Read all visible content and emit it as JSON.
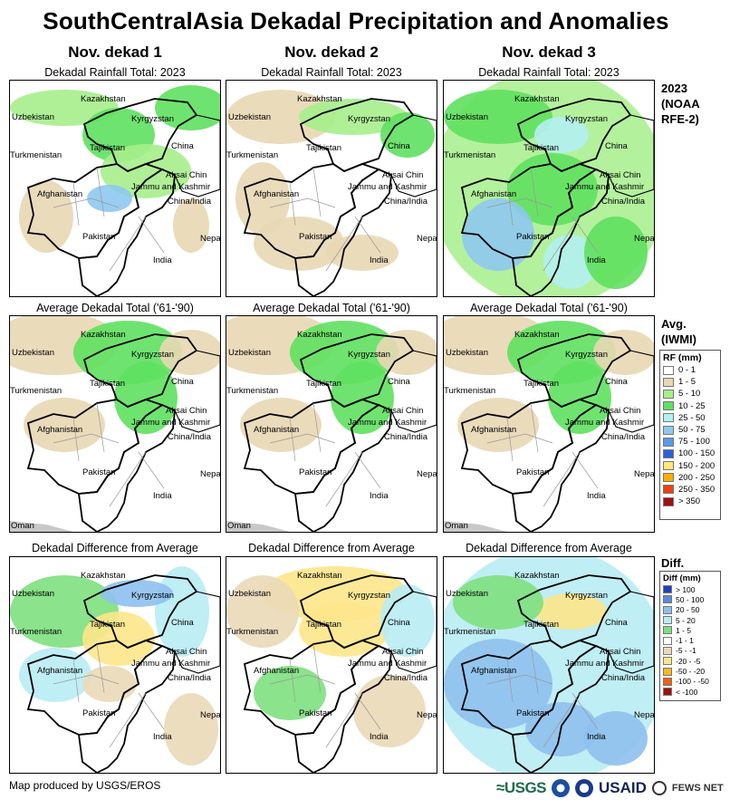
{
  "title": "SouthCentralAsia Dekadal Precipitation and Anomalies",
  "columns": [
    "Nov. dekad 1",
    "Nov. dekad 2",
    "Nov. dekad 3"
  ],
  "row_captions": {
    "total": "Dekadal Rainfall Total: 2023",
    "average": "Average Dekadal Total ('61-'90)",
    "difference": "Dekadal Difference from Average"
  },
  "side": {
    "total_title": [
      "2023",
      "(NOAA",
      "RFE-2)"
    ],
    "average_title": [
      "Avg.",
      "(IWMI)"
    ],
    "difference_title": "Diff."
  },
  "labels": {
    "kazakhstan": "Kazakhstan",
    "uzbekistan": "Uzbekistan",
    "kyrgyzstan": "Kyrgyzstan",
    "turkmenistan": "Turkmenistan",
    "tajikistan": "Tajikistan",
    "china": "China",
    "aksai_chin": "Aksai Chin",
    "jammu": "Jammu and Kashmir",
    "china_india": "China/India",
    "afghanistan": "Afghanistan",
    "pakistan": "Pakistan",
    "nepal": "Nepal",
    "india": "India",
    "oman": "Oman"
  },
  "rf_legend": {
    "title": "RF (mm)",
    "items": [
      {
        "label": "0 - 1",
        "color": "#ffffff"
      },
      {
        "label": "1 - 5",
        "color": "#e8d7b4"
      },
      {
        "label": "5 - 10",
        "color": "#a6ee8c"
      },
      {
        "label": "10 - 25",
        "color": "#5fe05f"
      },
      {
        "label": "25 - 50",
        "color": "#b2efef"
      },
      {
        "label": "50 - 75",
        "color": "#8ec8f0"
      },
      {
        "label": "75 - 100",
        "color": "#5a9ae6"
      },
      {
        "label": "100 - 150",
        "color": "#2d5fd6"
      },
      {
        "label": "150 - 200",
        "color": "#fde87a"
      },
      {
        "label": "200 - 250",
        "color": "#f8b000"
      },
      {
        "label": "250 - 350",
        "color": "#f04010"
      },
      {
        "label": "> 350",
        "color": "#a01010"
      }
    ]
  },
  "diff_legend": {
    "title": "Diff (mm)",
    "items": [
      {
        "label": "> 100",
        "color": "#2040c0"
      },
      {
        "label": "50 - 100",
        "color": "#5a8ae0"
      },
      {
        "label": "20 - 50",
        "color": "#8ec0ee"
      },
      {
        "label": "5 - 20",
        "color": "#b8ecf4"
      },
      {
        "label": "1 - 5",
        "color": "#7ee07e"
      },
      {
        "label": "-1 - 1",
        "color": "#ffffff"
      },
      {
        "label": "-5 - -1",
        "color": "#ead9b8"
      },
      {
        "label": "-20 - -5",
        "color": "#fde68a"
      },
      {
        "label": "-50 - -20",
        "color": "#f8b820"
      },
      {
        "label": "-100 - -50",
        "color": "#f06010"
      },
      {
        "label": "< -100",
        "color": "#a01010"
      }
    ]
  },
  "footer": "Map produced by USGS/EROS",
  "logos": {
    "usgs": "≈USGS",
    "usaid": "USAID",
    "fews": "FEWS NET"
  }
}
